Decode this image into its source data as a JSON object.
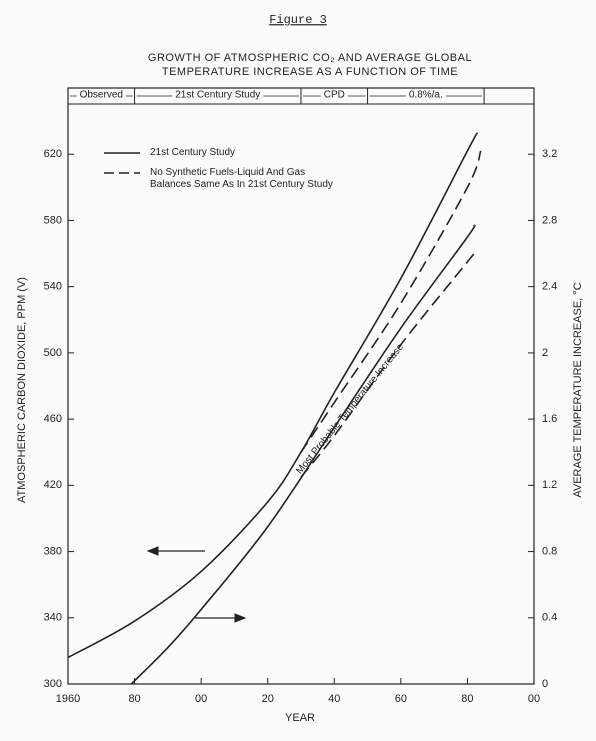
{
  "chart_data": {
    "type": "line",
    "figure_label": "Figure 3",
    "title": [
      "GROWTH OF ATMOSPHERIC CO₂ AND AVERAGE GLOBAL",
      "TEMPERATURE INCREASE AS A FUNCTION OF TIME"
    ],
    "x_label": "YEAR",
    "y_label": "ATMOSPHERIC CARBON DIOXIDE, PPM (V)",
    "y2_label": "AVERAGE TEMPERATURE INCREASE, °C",
    "annotation": "Most Probable Temperature Increase",
    "xlim": [
      1960,
      2100
    ],
    "xticks": [
      1960,
      {
        "value": 1980,
        "label": "80"
      },
      {
        "value": 2000,
        "label": "00"
      },
      {
        "value": 2020,
        "label": "20"
      },
      {
        "value": 2040,
        "label": "40"
      },
      {
        "value": 2060,
        "label": "60"
      },
      {
        "value": 2080,
        "label": "80"
      },
      {
        "value": 2100,
        "label": "00"
      }
    ],
    "ylim": [
      300,
      660
    ],
    "yticks": [
      300,
      340,
      380,
      420,
      460,
      500,
      540,
      580,
      620
    ],
    "y2lim": [
      0,
      3.6
    ],
    "y2ticks": [
      {
        "value": 0,
        "label": "0"
      },
      0.4,
      0.8,
      1.2,
      1.6,
      2.0,
      2.4,
      2.8,
      3.2
    ],
    "periods": [
      {
        "label": "Observed",
        "start": 1960,
        "end": 1980
      },
      {
        "label": "21st Century Study",
        "start": 1980,
        "end": 2030
      },
      {
        "label": "CPD",
        "start": 2030,
        "end": 2050
      },
      {
        "label": "0.8%/a.",
        "start": 2050,
        "end": 2085
      }
    ],
    "series": [
      {
        "name": "21st Century Study",
        "color": "#222222",
        "dash": false,
        "x": [
          1960,
          1980,
          2000,
          2020,
          2030,
          2040,
          2060,
          2080,
          2083
        ],
        "values": [
          316,
          338,
          368,
          410,
          440,
          476,
          545,
          622,
          633
        ]
      },
      {
        "name": "No Synthetic Fuels-Liquid And Gas Balances Same As In 21st Century Study",
        "color": "#222222",
        "dash": true,
        "x": [
          2030,
          2040,
          2060,
          2080,
          2084
        ],
        "values": [
          440,
          470,
          530,
          600,
          622
        ]
      },
      {
        "color": "#222222",
        "dash": false,
        "axis": "y2",
        "x": [
          1979,
          1990,
          2000,
          2020,
          2040,
          2060,
          2080,
          2082
        ],
        "values": [
          0,
          0.22,
          0.45,
          0.95,
          1.55,
          2.15,
          2.7,
          2.77
        ]
      },
      {
        "color": "#222222",
        "dash": true,
        "axis": "y2",
        "x": [
          2030,
          2040,
          2060,
          2080,
          2082
        ],
        "values": [
          1.25,
          1.5,
          2.05,
          2.55,
          2.6
        ]
      }
    ]
  }
}
